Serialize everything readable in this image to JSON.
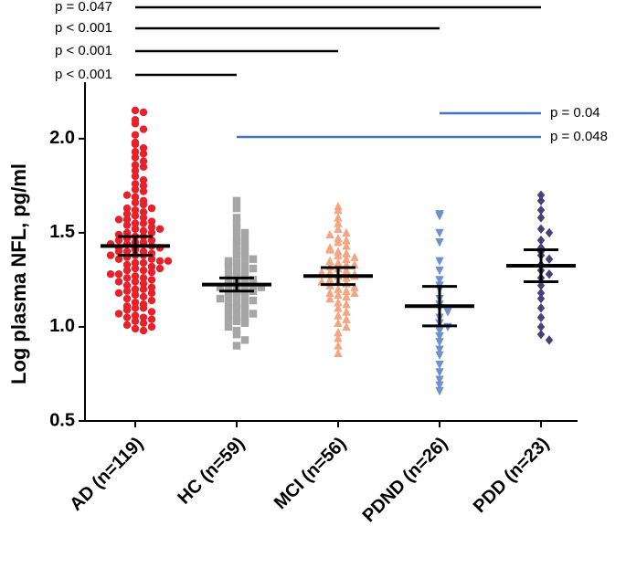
{
  "chart_data": {
    "type": "dot",
    "y_label": "Log plasma NFL, pg/ml",
    "categories": [
      "AD (n=119)",
      "HC (n=59)",
      "MCI (n=56)",
      "PDND (n=26)",
      "PDD (n=23)"
    ],
    "colors": [
      "#e8202a",
      "#a6a6a6",
      "#f4a582",
      "#6f8fce",
      "#4b3f7a"
    ],
    "markers": [
      "circle",
      "square",
      "triangle-up",
      "triangle-down",
      "diamond"
    ],
    "points": [
      [
        2.15,
        2.14,
        2.1,
        2.08,
        2.05,
        2.02,
        1.98,
        1.97,
        1.95,
        1.93,
        1.92,
        1.9,
        1.88,
        1.86,
        1.85,
        1.83,
        1.8,
        1.78,
        1.76,
        1.75,
        1.73,
        1.72,
        1.7,
        1.69,
        1.67,
        1.66,
        1.65,
        1.63,
        1.62,
        1.61,
        1.6,
        1.59,
        1.58,
        1.57,
        1.56,
        1.55,
        1.55,
        1.54,
        1.53,
        1.52,
        1.51,
        1.5,
        1.5,
        1.49,
        1.48,
        1.48,
        1.47,
        1.46,
        1.45,
        1.45,
        1.44,
        1.43,
        1.42,
        1.42,
        1.41,
        1.4,
        1.4,
        1.39,
        1.38,
        1.38,
        1.37,
        1.36,
        1.36,
        1.35,
        1.34,
        1.34,
        1.33,
        1.32,
        1.31,
        1.3,
        1.3,
        1.29,
        1.28,
        1.27,
        1.26,
        1.26,
        1.25,
        1.24,
        1.23,
        1.22,
        1.21,
        1.2,
        1.2,
        1.19,
        1.18,
        1.17,
        1.16,
        1.15,
        1.14,
        1.13,
        1.12,
        1.11,
        1.1,
        1.1,
        1.09,
        1.08,
        1.07,
        1.06,
        1.05,
        1.05,
        1.04,
        1.03,
        1.02,
        1.01,
        1.0,
        0.99,
        0.98,
        1.57,
        1.63,
        1.46,
        1.38,
        1.31,
        1.24,
        1.35,
        1.44,
        1.52,
        1.28,
        1.18,
        1.4
      ],
      [
        1.67,
        1.63,
        1.58,
        1.55,
        1.52,
        1.5,
        1.48,
        1.46,
        1.45,
        1.43,
        1.41,
        1.4,
        1.38,
        1.37,
        1.35,
        1.34,
        1.33,
        1.32,
        1.3,
        1.29,
        1.28,
        1.27,
        1.26,
        1.25,
        1.24,
        1.23,
        1.22,
        1.22,
        1.21,
        1.2,
        1.19,
        1.18,
        1.17,
        1.16,
        1.15,
        1.14,
        1.13,
        1.12,
        1.11,
        1.1,
        1.09,
        1.08,
        1.07,
        1.06,
        1.05,
        1.04,
        1.03,
        1.02,
        1.0,
        0.98,
        0.96,
        0.93,
        0.9,
        1.25,
        1.19,
        1.31,
        1.15,
        1.36,
        1.21
      ],
      [
        1.64,
        1.62,
        1.58,
        1.55,
        1.52,
        1.5,
        1.49,
        1.47,
        1.46,
        1.45,
        1.43,
        1.42,
        1.4,
        1.39,
        1.38,
        1.36,
        1.35,
        1.34,
        1.33,
        1.32,
        1.31,
        1.3,
        1.29,
        1.28,
        1.27,
        1.26,
        1.25,
        1.24,
        1.23,
        1.22,
        1.21,
        1.2,
        1.19,
        1.18,
        1.17,
        1.16,
        1.15,
        1.13,
        1.12,
        1.1,
        1.08,
        1.06,
        1.04,
        1.02,
        1.0,
        0.97,
        0.94,
        0.9,
        0.86,
        1.29,
        1.33,
        1.27,
        1.37,
        1.24,
        1.41,
        1.18
      ],
      [
        1.6,
        1.59,
        1.5,
        1.45,
        1.35,
        1.3,
        1.25,
        1.22,
        1.2,
        1.15,
        1.12,
        1.1,
        1.08,
        1.05,
        1.02,
        1.0,
        0.98,
        0.95,
        0.92,
        0.88,
        0.85,
        0.8,
        0.76,
        0.72,
        0.69,
        0.66
      ],
      [
        1.7,
        1.67,
        1.62,
        1.58,
        1.52,
        1.5,
        1.46,
        1.42,
        1.4,
        1.38,
        1.36,
        1.33,
        1.3,
        1.28,
        1.26,
        1.22,
        1.18,
        1.15,
        1.1,
        1.05,
        1.0,
        0.96,
        0.93
      ]
    ],
    "means": [
      1.43,
      1.225,
      1.27,
      1.11,
      1.325
    ],
    "errors": [
      0.05,
      0.035,
      0.045,
      0.105,
      0.085
    ],
    "ylim": [
      0.5,
      2.3
    ],
    "yticks": [
      {
        "value": 0.5,
        "label": "0.5"
      },
      {
        "value": 1,
        "label": "1.0"
      },
      {
        "value": 1.5,
        "label": "1.5"
      },
      {
        "value": 2,
        "label": "2.0"
      }
    ],
    "comparisons": [
      {
        "from": 0,
        "to": 4,
        "label": "p = 0.047",
        "color": "#000000"
      },
      {
        "from": 0,
        "to": 3,
        "label": "p < 0.001",
        "color": "#000000"
      },
      {
        "from": 0,
        "to": 2,
        "label": "p < 0.001",
        "color": "#000000"
      },
      {
        "from": 0,
        "to": 1,
        "label": "p < 0.001",
        "color": "#000000"
      },
      {
        "from": 3,
        "to": 4,
        "label": "p = 0.04",
        "color": "#4472c4"
      },
      {
        "from": 1,
        "to": 4,
        "label": "p = 0.048",
        "color": "#4472c4"
      }
    ]
  }
}
